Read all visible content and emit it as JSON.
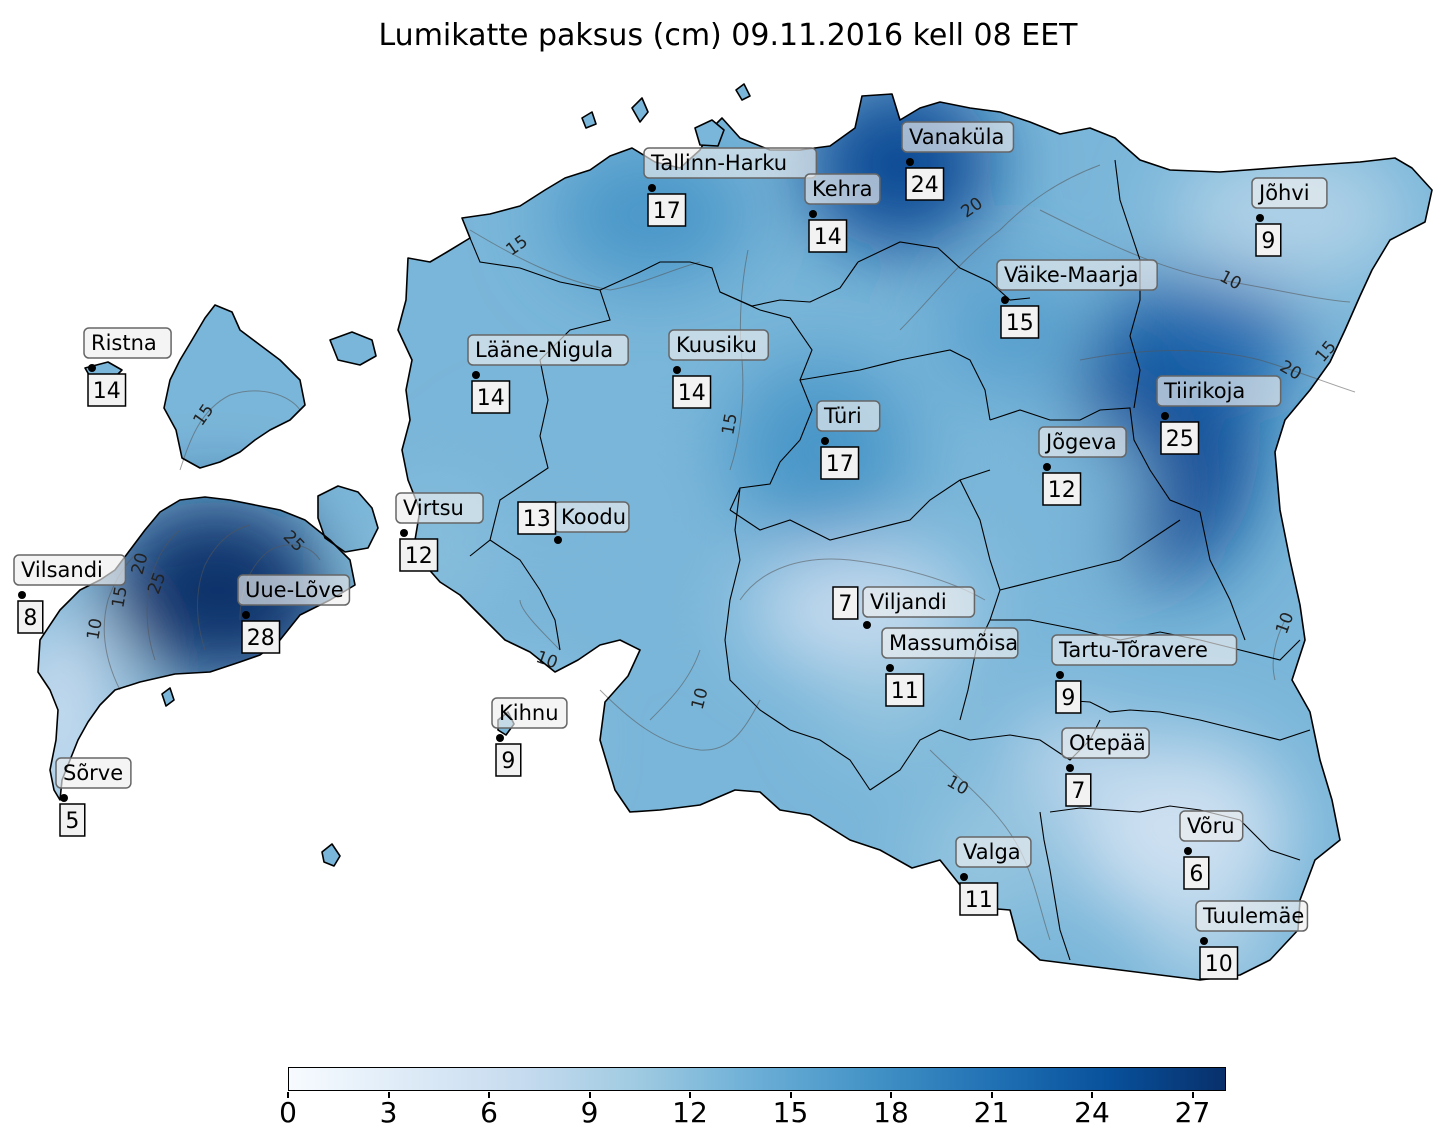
{
  "title": "Lumikatte paksus (cm) 09.11.2016 kell 08 EET",
  "colormap": {
    "name": "Blues",
    "min": 0,
    "max": 28,
    "stops": [
      "#f7fbff",
      "#deebf7",
      "#c6dbef",
      "#9ecae1",
      "#6baed6",
      "#4292c6",
      "#2171b5",
      "#08519c",
      "#08306b"
    ]
  },
  "colorbar": {
    "ticks": [
      "0",
      "3",
      "6",
      "9",
      "12",
      "15",
      "18",
      "21",
      "24",
      "27"
    ]
  },
  "contour_levels": [
    "10",
    "15",
    "20",
    "25"
  ],
  "stations": [
    {
      "name": "Vanaküla",
      "value": 24
    },
    {
      "name": "Tallinn-Harku",
      "value": 17
    },
    {
      "name": "Kehra",
      "value": 14
    },
    {
      "name": "Jõhvi",
      "value": 9
    },
    {
      "name": "Väike-Maarja",
      "value": 15
    },
    {
      "name": "Ristna",
      "value": 14
    },
    {
      "name": "Lääne-Nigula",
      "value": 14
    },
    {
      "name": "Kuusiku",
      "value": 14
    },
    {
      "name": "Tiirikoja",
      "value": 25
    },
    {
      "name": "Türi",
      "value": 17
    },
    {
      "name": "Jõgeva",
      "value": 12
    },
    {
      "name": "Virtsu",
      "value": 12
    },
    {
      "name": "Koodu",
      "value": 13
    },
    {
      "name": "Vilsandi",
      "value": 8
    },
    {
      "name": "Uue-Lõve",
      "value": 28
    },
    {
      "name": "Viljandi",
      "value": 7
    },
    {
      "name": "Massumõisa",
      "value": 11
    },
    {
      "name": "Tartu-Tõravere",
      "value": 9
    },
    {
      "name": "Kihnu",
      "value": 9
    },
    {
      "name": "Otepää",
      "value": 7
    },
    {
      "name": "Sõrve",
      "value": 5
    },
    {
      "name": "Võru",
      "value": 6
    },
    {
      "name": "Valga",
      "value": 11
    },
    {
      "name": "Tuulemäe",
      "value": 10
    }
  ]
}
